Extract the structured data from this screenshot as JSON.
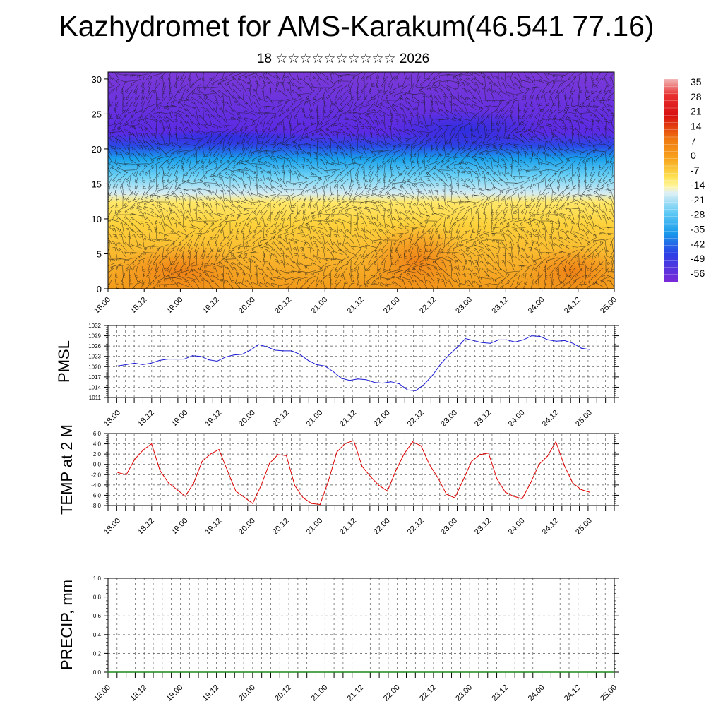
{
  "title": "Kazhydromet for AMS-Karakum(46.541 77.16)",
  "subtitle": "18 ☆☆☆☆☆☆☆☆☆☆ 2026",
  "chart_data": [
    {
      "type": "heatmap",
      "title": "",
      "xlabel": "",
      "ylabel": "",
      "x_tick_labels": [
        "18.00",
        "18.12",
        "19.00",
        "19.12",
        "20.00",
        "20.12",
        "21.00",
        "21.12",
        "22.00",
        "22.12",
        "23.00",
        "23.12",
        "24.00",
        "24.12",
        "25.00"
      ],
      "y_ticks": [
        0,
        5,
        10,
        15,
        20,
        25,
        30
      ],
      "ylim": [
        0,
        31
      ],
      "colorbar_labels": [
        "35",
        "28",
        "21",
        "14",
        "7",
        "0",
        "-7",
        "-14",
        "-21",
        "-28",
        "-35",
        "-42",
        "-49",
        "-56"
      ],
      "colors": {
        "warm": "#f6a21c",
        "mid": "#ffeb6a",
        "cool": "#2fb7f0",
        "cold": "#7030e8"
      },
      "wind_barbs": true
    },
    {
      "type": "line",
      "title": "",
      "xlabel": "",
      "ylabel": "PMSL",
      "x_tick_labels": [
        "18.00",
        "18.12",
        "19.00",
        "19.12",
        "20.00",
        "20.12",
        "21.00",
        "21.12",
        "22.00",
        "22.12",
        "23.00",
        "23.12",
        "24.00",
        "24.12",
        "25.00"
      ],
      "y_tick_labels": [
        "1011",
        "1014",
        "1017",
        "1020",
        "1023",
        "1026",
        "1029",
        "1032"
      ],
      "ylim": [
        1011,
        1032
      ],
      "line_color": "#1a1ad6",
      "series": [
        {
          "values": [
            1020.2,
            1020.6,
            1021.0,
            1020.6,
            1021.0,
            1021.8,
            1022.2,
            1022.2,
            1022.2,
            1023.2,
            1023.0,
            1022.0,
            1021.6,
            1022.8,
            1023.4,
            1023.6,
            1024.8,
            1026.4,
            1025.8,
            1024.8,
            1024.6,
            1024.6,
            1023.6,
            1021.8,
            1020.6,
            1020.2,
            1018.6,
            1016.6,
            1016.0,
            1016.4,
            1016.2,
            1015.4,
            1015.2,
            1015.6,
            1015.0,
            1013.2,
            1013.0,
            1014.8,
            1017.4,
            1020.8,
            1023.4,
            1025.6,
            1028.2,
            1027.6,
            1027.0,
            1026.8,
            1027.8,
            1027.8,
            1027.2,
            1027.8,
            1029.0,
            1028.8,
            1027.8,
            1027.4,
            1027.6,
            1026.8,
            1025.4,
            1025.0
          ]
        }
      ]
    },
    {
      "type": "line",
      "title": "",
      "xlabel": "",
      "ylabel": "TEMP at 2 M",
      "x_tick_labels": [
        "18.00",
        "18.12",
        "19.00",
        "19.12",
        "20.00",
        "20.12",
        "21.00",
        "21.12",
        "22.00",
        "22.12",
        "23.00",
        "23.12",
        "24.00",
        "24.12",
        "25.00"
      ],
      "y_tick_labels": [
        "-8.0",
        "-6.0",
        "-4.0",
        "-2.0",
        "0.0",
        "2.0",
        "4.0",
        "6.0"
      ],
      "ylim": [
        -8,
        6
      ],
      "line_color": "#e00000",
      "series": [
        {
          "values": [
            -1.6,
            -2.0,
            1.0,
            2.8,
            4.0,
            -1.2,
            -3.6,
            -4.9,
            -6.2,
            -3.6,
            0.6,
            2.0,
            2.9,
            -1.2,
            -5.2,
            -6.4,
            -7.6,
            -4.1,
            0.2,
            1.9,
            1.7,
            -4.1,
            -6.5,
            -7.6,
            -7.8,
            -3.2,
            2.4,
            4.1,
            4.6,
            -0.4,
            -2.4,
            -4.1,
            -5.2,
            -1.2,
            2.1,
            4.4,
            3.6,
            -0.1,
            -2.6,
            -5.8,
            -6.5,
            -3.0,
            0.6,
            1.9,
            2.2,
            -2.8,
            -5.4,
            -6.2,
            -6.7,
            -3.6,
            0.0,
            1.6,
            4.4,
            -0.2,
            -3.6,
            -4.9,
            -5.4
          ]
        }
      ]
    },
    {
      "type": "line",
      "title": "",
      "xlabel": "",
      "ylabel": "PRECIP, mm",
      "x_tick_labels": [
        "18.00",
        "18.12",
        "19.00",
        "19.12",
        "20.00",
        "20.12",
        "21.00",
        "21.12",
        "22.00",
        "22.12",
        "23.00",
        "23.12",
        "24.00",
        "24.12",
        "25.00"
      ],
      "y_tick_labels": [
        "0.0",
        "0.2",
        "0.4",
        "0.6",
        "0.8",
        "1.0"
      ],
      "ylim": [
        0,
        1
      ],
      "line_color": "#1a8a1a",
      "series": [
        {
          "values": [
            0,
            0,
            0,
            0,
            0,
            0,
            0,
            0,
            0,
            0,
            0,
            0,
            0,
            0,
            0,
            0,
            0,
            0,
            0,
            0,
            0,
            0,
            0,
            0,
            0,
            0,
            0,
            0,
            0,
            0,
            0,
            0,
            0,
            0,
            0,
            0,
            0,
            0,
            0,
            0,
            0,
            0,
            0,
            0,
            0,
            0,
            0,
            0,
            0,
            0,
            0,
            0,
            0,
            0,
            0,
            0,
            0
          ]
        }
      ]
    }
  ]
}
